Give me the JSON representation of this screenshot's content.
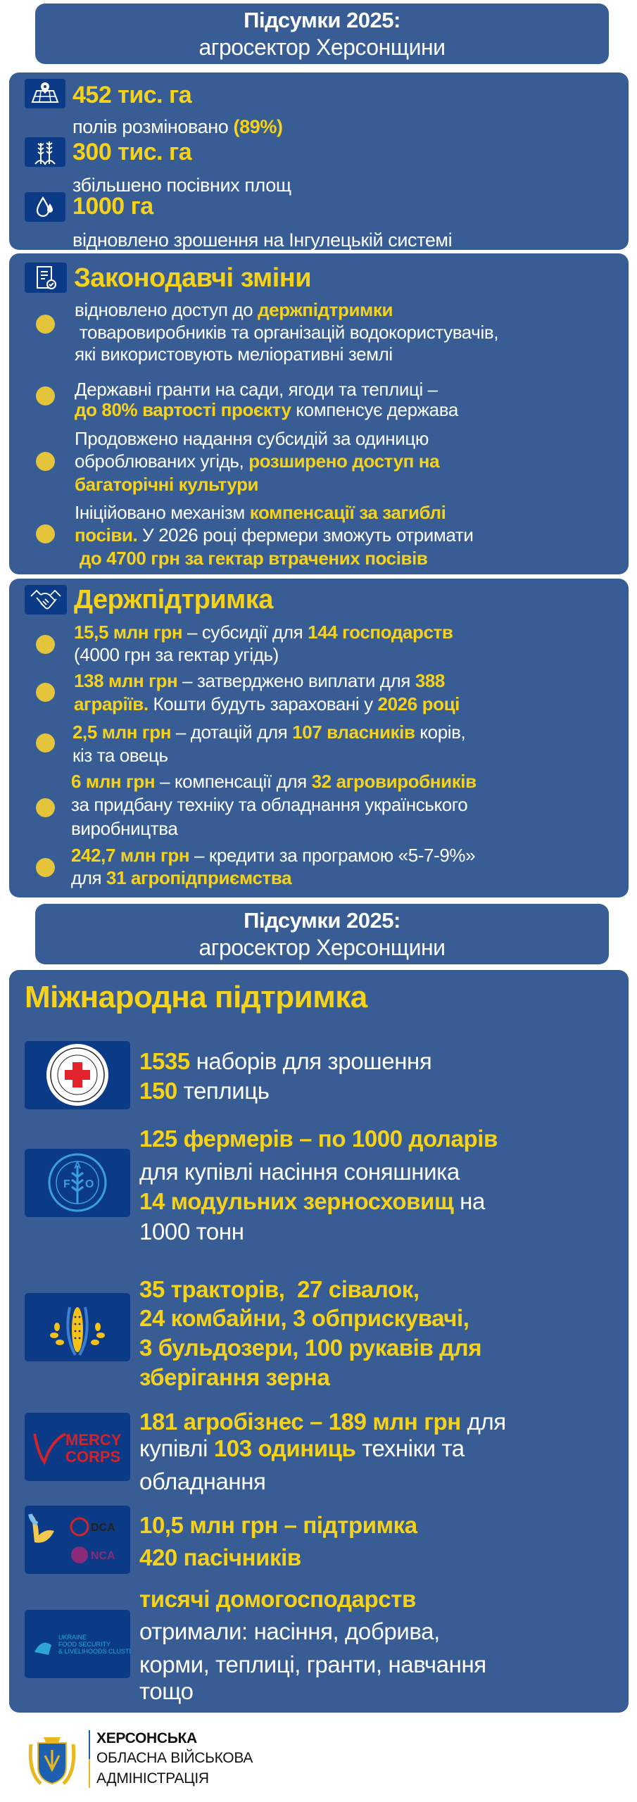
{
  "colors": {
    "panel": "#375d94",
    "icon_bg": "#0b3b86",
    "accent_yellow": "#f6d21a",
    "bullet": "#e4c43a",
    "text": "#ffffff"
  },
  "header": {
    "title": "Підсумки 2025:",
    "subtitle": "агросектор Херсонщини"
  },
  "stats": [
    {
      "icon": "map-pin-icon",
      "value": "452 тис. га",
      "desc": [
        {
          "t": "полів розміновано "
        },
        {
          "t": "(89%)",
          "b": true
        }
      ]
    },
    {
      "icon": "wheat-icon",
      "value": "300 тис. га",
      "desc": [
        {
          "t": "збільшено посівних площ"
        }
      ]
    },
    {
      "icon": "water-drop-icon",
      "value": "1000 га",
      "desc": [
        {
          "t": "відновлено зрошення на Інгулецькій системі"
        }
      ]
    }
  ],
  "legal": {
    "icon": "document-check-icon",
    "title": "Законодавчі зміни",
    "items": [
      {
        "lines": [
          [
            {
              "t": "відновлено доступ до "
            },
            {
              "t": "держпідтримки",
              "b": true
            }
          ],
          [
            {
              "t": " товаровиробників та організацій водокористувачів,"
            }
          ],
          [
            {
              "t": "які використовують меліоративні землі"
            }
          ]
        ]
      },
      {
        "lines": [
          [
            {
              "t": "Державні гранти на сади, ягоди та теплиці –"
            }
          ],
          [
            {
              "t": "до 80% вартості проєкту",
              "b": true
            },
            {
              "t": " компенсує держава"
            }
          ]
        ]
      },
      {
        "lines": [
          [
            {
              "t": "Продовжено надання субсидій за одиницю"
            }
          ],
          [
            {
              "t": "оброблюваних угідь, "
            },
            {
              "t": "розширено доступ на",
              "b": true
            }
          ],
          [
            {
              "t": "багаторічні культури",
              "b": true
            }
          ]
        ]
      },
      {
        "lines": [
          [
            {
              "t": "Ініційовано механізм "
            },
            {
              "t": "компенсації за загиблі",
              "b": true
            }
          ],
          [
            {
              "t": "посіви.",
              "b": true
            },
            {
              "t": " У 2026 році фермери зможуть отримати"
            }
          ],
          [
            {
              "t": " до 4700 грн за гектар втрачених посівів",
              "b": true
            }
          ]
        ]
      }
    ]
  },
  "state_support": {
    "icon": "handshake-icon",
    "title": "Держпідтримка",
    "items": [
      {
        "lines": [
          [
            {
              "t": "15,5 млн грн",
              "b": true
            },
            {
              "t": " – субсидії для "
            },
            {
              "t": "144 господарств",
              "b": true
            }
          ],
          [
            {
              "t": "(4000 грн за гектар угідь)"
            }
          ]
        ]
      },
      {
        "lines": [
          [
            {
              "t": "138 млн грн",
              "b": true
            },
            {
              "t": " – затверджено виплати для "
            },
            {
              "t": "388",
              "b": true
            }
          ],
          [
            {
              "t": "аграріїв.",
              "b": true
            },
            {
              "t": " Кошти будуть зараховані у "
            },
            {
              "t": "2026 році",
              "b": true
            }
          ]
        ]
      },
      {
        "lines": [
          [
            {
              "t": "2,5 млн грн",
              "b": true
            },
            {
              "t": " – дотацій для "
            },
            {
              "t": "107 власників",
              "b": true
            },
            {
              "t": " корів,"
            }
          ],
          [
            {
              "t": "кіз та овець"
            }
          ]
        ]
      },
      {
        "lines": [
          [
            {
              "t": "6 млн грн",
              "b": true
            },
            {
              "t": " – компенсації для "
            },
            {
              "t": "32 агровиробників",
              "b": true
            }
          ],
          [
            {
              "t": "за придбану техніку та обладнання українського"
            }
          ],
          [
            {
              "t": "виробництва"
            }
          ]
        ]
      },
      {
        "lines": [
          [
            {
              "t": "242,7 млн грн",
              "b": true
            },
            {
              "t": " – кредити за програмою «5-7-9%»"
            }
          ],
          [
            {
              "t": "для "
            },
            {
              "t": "31 агропідприємства",
              "b": true
            }
          ]
        ]
      }
    ]
  },
  "header2": {
    "title": "Підсумки 2025:",
    "subtitle": "агросектор Херсонщини"
  },
  "international": {
    "title": "Міжнародна підтримка",
    "items": [
      {
        "logo": "icrc-logo",
        "logo_text": "COMITE INTERNATIONAL GENEVE",
        "lines": [
          [
            {
              "t": "1535",
              "b": true
            },
            {
              "t": " наборів для зрошення"
            }
          ],
          [
            {
              "t": "150",
              "b": true
            },
            {
              "t": " теплиць"
            }
          ]
        ]
      },
      {
        "logo": "fao-logo",
        "logo_text": "FAO FIAT PANIS",
        "lines": [
          [
            {
              "t": "125 фермерів – по 1000 доларів",
              "b": true
            }
          ],
          [
            {
              "t": "для купівлі насіння соняшника"
            }
          ],
          [
            {
              "t": "14 модульних зерносховищ",
              "b": true
            },
            {
              "t": " на"
            }
          ],
          [
            {
              "t": "1000 тонн"
            }
          ]
        ]
      },
      {
        "logo": "corn-logo",
        "lines": [
          [
            {
              "t": "35 тракторів,  27 сівалок,",
              "b": true
            }
          ],
          [
            {
              "t": "24 комбайни, 3 обприскувачі,",
              "b": true
            }
          ],
          [
            {
              "t": "3 бульдозери, 100 рукавів для",
              "b": true
            }
          ],
          [
            {
              "t": "зберігання зерна",
              "b": true
            }
          ]
        ]
      },
      {
        "logo": "mercy-corps-logo",
        "logo_text": [
          "MERCY",
          "CORPS"
        ],
        "lines": [
          [
            {
              "t": "181 агробізнес – 189 млн грн",
              "b": true
            },
            {
              "t": " для"
            }
          ],
          [
            {
              "t": "купівлі "
            },
            {
              "t": "103 одиниць",
              "b": true
            },
            {
              "t": " техніки та"
            }
          ],
          [
            {
              "t": "обладнання"
            }
          ]
        ]
      },
      {
        "logo": "dca-nca-logo",
        "logo_text": [
          "DCA",
          "NCA"
        ],
        "lines": [
          [
            {
              "t": "10,5 млн грн – підтримка",
              "b": true
            }
          ],
          [
            {
              "t": "420 пасічників",
              "b": true
            }
          ]
        ]
      },
      {
        "logo": "food-security-cluster-logo",
        "logo_text": [
          "UKRAINE",
          "FOOD SECURITY",
          "& LIVELIHOODS CLUSTER"
        ],
        "lines": [
          [
            {
              "t": "тисячі домогосподарств",
              "b": true
            }
          ],
          [
            {
              "t": "отримали: насіння, добрива,"
            }
          ],
          [
            {
              "t": "корми, теплиці, гранти, навчання"
            }
          ],
          [
            {
              "t": "тощо"
            }
          ]
        ]
      }
    ]
  },
  "footer": {
    "line1": "ХЕРСОНСЬКА",
    "line2": "ОБЛАСНА ВІЙСЬКОВА",
    "line3": "АДМІНІСТРАЦІЯ"
  }
}
